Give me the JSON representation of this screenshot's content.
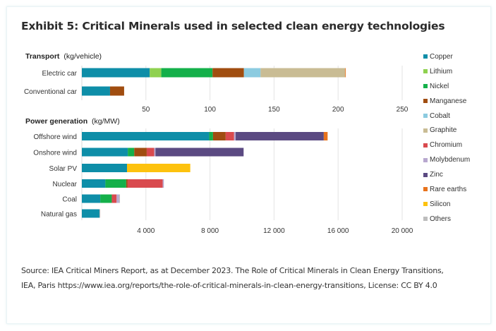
{
  "title": "Exhibit 5: Critical Minerals used in selected clean energy technologies",
  "source": {
    "line1": "Source: IEA Critical Miners Report, as at December 2023. The Role of Critical Minerals in Clean Energy Transitions,",
    "line2": "IEA, Paris https://www.iea.org/reports/the-role-of-critical-minerals-in-clean-energy-transitions, License: CC BY 4.0"
  },
  "chart_data": [
    {
      "type": "bar",
      "orientation": "horizontal",
      "stacked": true,
      "title": "Transport",
      "title_unit": "(kg/vehicle)",
      "categories": [
        "Electric car",
        "Conventional car"
      ],
      "xlim": [
        0,
        250
      ],
      "xticks": [
        50,
        100,
        150,
        200,
        250
      ],
      "xtick_labels": [
        "50",
        "100",
        "150",
        "200",
        "250"
      ],
      "grid": true,
      "series": [
        {
          "name": "Copper",
          "values": [
            53,
            22
          ]
        },
        {
          "name": "Lithium",
          "values": [
            9,
            0
          ]
        },
        {
          "name": "Nickel",
          "values": [
            40,
            0
          ]
        },
        {
          "name": "Manganese",
          "values": [
            24.5,
            11
          ]
        },
        {
          "name": "Cobalt",
          "values": [
            13,
            0
          ]
        },
        {
          "name": "Graphite",
          "values": [
            66,
            0
          ]
        },
        {
          "name": "Rare earths",
          "values": [
            0.5,
            0
          ]
        }
      ]
    },
    {
      "type": "bar",
      "orientation": "horizontal",
      "stacked": true,
      "title": "Power generation",
      "title_unit": "(kg/MW)",
      "categories": [
        "Offshore wind",
        "Onshore wind",
        "Solar PV",
        "Nuclear",
        "Coal",
        "Natural gas"
      ],
      "xlim": [
        0,
        20000
      ],
      "xticks": [
        4000,
        8000,
        12000,
        16000,
        20000
      ],
      "xtick_labels": [
        "4 000",
        "8 000",
        "12 000",
        "16 000",
        "20 000"
      ],
      "grid": true,
      "series": [
        {
          "name": "Copper",
          "values": [
            7950,
            2870,
            2820,
            1470,
            1150,
            1100
          ]
        },
        {
          "name": "Nickel",
          "values": [
            240,
            400,
            0,
            1300,
            720,
            0
          ]
        },
        {
          "name": "Manganese",
          "values": [
            790,
            780,
            0,
            90,
            0,
            0
          ]
        },
        {
          "name": "Chromium",
          "values": [
            525,
            470,
            0,
            2190,
            300,
            0
          ]
        },
        {
          "name": "Molybdenum",
          "values": [
            100,
            80,
            0,
            70,
            160,
            0
          ]
        },
        {
          "name": "Zinc",
          "values": [
            5500,
            5500,
            0,
            0,
            0,
            0
          ]
        },
        {
          "name": "Rare earths",
          "values": [
            240,
            0,
            0,
            0,
            0,
            0
          ]
        },
        {
          "name": "Silicon",
          "values": [
            0,
            0,
            3950,
            0,
            0,
            0
          ]
        },
        {
          "name": "Others",
          "values": [
            0,
            0,
            0,
            0,
            50,
            50
          ]
        }
      ]
    }
  ],
  "legend": {
    "placement": "right",
    "items": [
      {
        "name": "Copper",
        "color": "#0e8ea8"
      },
      {
        "name": "Lithium",
        "color": "#8fd14f"
      },
      {
        "name": "Nickel",
        "color": "#14b04a"
      },
      {
        "name": "Manganese",
        "color": "#a04d10"
      },
      {
        "name": "Cobalt",
        "color": "#8ccbe0"
      },
      {
        "name": "Graphite",
        "color": "#c9bc94"
      },
      {
        "name": "Chromium",
        "color": "#d94a4e"
      },
      {
        "name": "Molybdenum",
        "color": "#b8a8cf"
      },
      {
        "name": "Zinc",
        "color": "#5b4a82"
      },
      {
        "name": "Rare earths",
        "color": "#e8731c"
      },
      {
        "name": "Silicon",
        "color": "#fdc20e"
      },
      {
        "name": "Others",
        "color": "#bdbdbd"
      }
    ]
  }
}
